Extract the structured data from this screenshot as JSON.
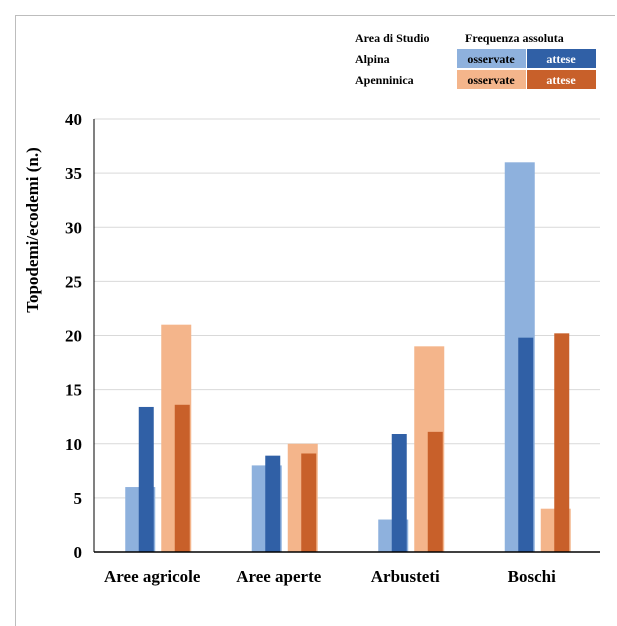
{
  "chart_data": {
    "type": "bar",
    "categories": [
      "Aree agricole",
      "Aree aperte",
      "Arbusteti",
      "Boschi"
    ],
    "ylabel": "Topodemi/ecodemi  (n.)",
    "ylim": [
      0,
      40
    ],
    "yticks": [
      0,
      5,
      10,
      15,
      20,
      25,
      30,
      35,
      40
    ],
    "grid": true,
    "legend": {
      "placement": "top-right",
      "header_area": "Area di Studio",
      "header_freq": "Frequenza assoluta",
      "rows": [
        {
          "area": "Alpina",
          "observed_label": "osservate",
          "expected_label": "attese"
        },
        {
          "area": "Apenninica",
          "observed_label": "osservate",
          "expected_label": "attese"
        }
      ]
    },
    "series": [
      {
        "area": "Alpina",
        "kind": "observed",
        "color": "#8eb1dd",
        "values": [
          6,
          8,
          3,
          36
        ]
      },
      {
        "area": "Alpina",
        "kind": "expected",
        "color": "#3060a6",
        "values": [
          13.4,
          8.9,
          10.9,
          19.8
        ]
      },
      {
        "area": "Apenninica",
        "kind": "observed",
        "color": "#f4b58b",
        "values": [
          21,
          10,
          19,
          4
        ]
      },
      {
        "area": "Apenninica",
        "kind": "expected",
        "color": "#c8602a",
        "values": [
          13.6,
          9.1,
          11.1,
          20.2
        ]
      }
    ]
  }
}
